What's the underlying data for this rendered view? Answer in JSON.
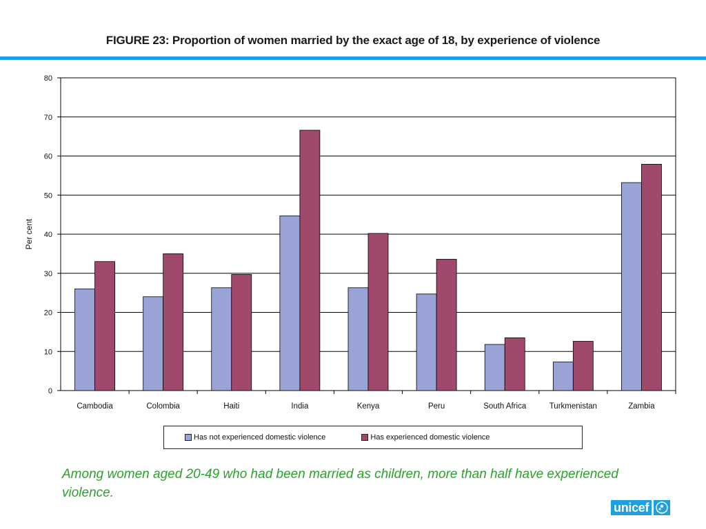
{
  "slide": {
    "title": "FIGURE 23: Proportion of women married by the exact age of 18, by experience of violence",
    "caption": "Among women aged 20-49 who had been married as children, more than half have experienced violence.",
    "logo_text": "unicef",
    "accent_color": "#1e9fe0",
    "caption_color": "#2ca02c"
  },
  "chart_data": {
    "type": "bar",
    "title": "FIGURE 23: Proportion of women married by the exact age of 18, by experience of violence",
    "xlabel": "",
    "ylabel": "Per cent",
    "ylim": [
      0,
      80
    ],
    "yticks": [
      0,
      10,
      20,
      30,
      40,
      50,
      60,
      70,
      80
    ],
    "grid": true,
    "legend_position": "bottom",
    "categories": [
      "Cambodia",
      "Colombia",
      "Haiti",
      "India",
      "Kenya",
      "Peru",
      "South Africa",
      "Turkmenistan",
      "Zambia"
    ],
    "series": [
      {
        "name": "Has not experienced domestic violence",
        "color": "#99a3d6",
        "values": [
          26,
          24,
          26.3,
          44.7,
          26.3,
          24.7,
          11.8,
          7.3,
          53.2
        ]
      },
      {
        "name": "Has experienced domestic violence",
        "color": "#a0496d",
        "values": [
          33,
          35,
          29.7,
          66.6,
          40.2,
          33.6,
          13.5,
          12.6,
          57.9
        ]
      }
    ]
  }
}
